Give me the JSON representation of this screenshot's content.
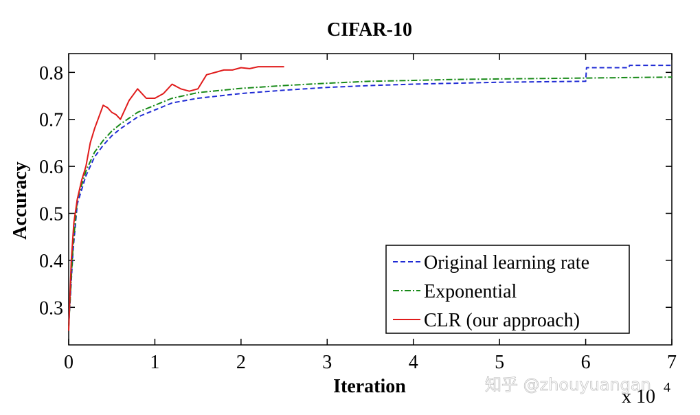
{
  "chart_data": {
    "type": "line",
    "title": "CIFAR-10",
    "xlabel": "Iteration",
    "ylabel": "Accuracy",
    "x_multiplier_label": "x 10",
    "x_multiplier_exponent": "4",
    "xlim": [
      0,
      7
    ],
    "ylim": [
      0.22,
      0.84
    ],
    "x_ticks": [
      0,
      1,
      2,
      3,
      4,
      5,
      6,
      7
    ],
    "x_tick_labels": [
      "0",
      "1",
      "2",
      "3",
      "4",
      "5",
      "6",
      "7"
    ],
    "y_ticks": [
      0.3,
      0.4,
      0.5,
      0.6,
      0.7,
      0.8
    ],
    "y_tick_labels": [
      "0.3",
      "0.4",
      "0.5",
      "0.6",
      "0.7",
      "0.8"
    ],
    "grid": false,
    "legend_position": "bottom-right",
    "series": [
      {
        "name": "Original learning rate",
        "color": "#1f2bd4",
        "style": "dashed",
        "x": [
          0,
          0.05,
          0.1,
          0.2,
          0.3,
          0.4,
          0.5,
          0.6,
          0.8,
          1.0,
          1.2,
          1.5,
          2.0,
          2.5,
          3.0,
          3.5,
          4.0,
          4.5,
          5.0,
          5.5,
          6.0,
          6.01,
          6.5,
          6.51,
          7.0
        ],
        "y": [
          0.26,
          0.42,
          0.52,
          0.58,
          0.62,
          0.645,
          0.665,
          0.68,
          0.705,
          0.72,
          0.735,
          0.745,
          0.755,
          0.762,
          0.768,
          0.772,
          0.775,
          0.777,
          0.779,
          0.78,
          0.781,
          0.81,
          0.81,
          0.815,
          0.815
        ]
      },
      {
        "name": "Exponential",
        "color": "#188a18",
        "style": "dashdot",
        "x": [
          0,
          0.05,
          0.1,
          0.2,
          0.3,
          0.4,
          0.5,
          0.6,
          0.8,
          1.0,
          1.2,
          1.5,
          2.0,
          2.5,
          3.0,
          3.5,
          4.0,
          4.5,
          5.0,
          5.5,
          6.0,
          6.5,
          7.0
        ],
        "y": [
          0.26,
          0.43,
          0.53,
          0.59,
          0.63,
          0.655,
          0.675,
          0.69,
          0.715,
          0.73,
          0.745,
          0.757,
          0.766,
          0.772,
          0.777,
          0.781,
          0.783,
          0.785,
          0.786,
          0.787,
          0.788,
          0.789,
          0.79
        ]
      },
      {
        "name": "CLR (our approach)",
        "color": "#e01b1b",
        "style": "solid",
        "x": [
          0,
          0.03,
          0.06,
          0.1,
          0.15,
          0.2,
          0.25,
          0.3,
          0.35,
          0.4,
          0.45,
          0.5,
          0.55,
          0.6,
          0.7,
          0.8,
          0.9,
          1.0,
          1.1,
          1.2,
          1.3,
          1.4,
          1.5,
          1.6,
          1.7,
          1.8,
          1.9,
          2.0,
          2.1,
          2.2,
          2.3,
          2.4,
          2.5
        ],
        "y": [
          0.25,
          0.4,
          0.48,
          0.53,
          0.57,
          0.6,
          0.65,
          0.68,
          0.705,
          0.73,
          0.725,
          0.715,
          0.71,
          0.7,
          0.74,
          0.765,
          0.745,
          0.745,
          0.755,
          0.775,
          0.765,
          0.76,
          0.765,
          0.795,
          0.8,
          0.805,
          0.805,
          0.81,
          0.808,
          0.812,
          0.812,
          0.812,
          0.812
        ]
      }
    ]
  },
  "watermark": "知乎 @zhouyuangan"
}
